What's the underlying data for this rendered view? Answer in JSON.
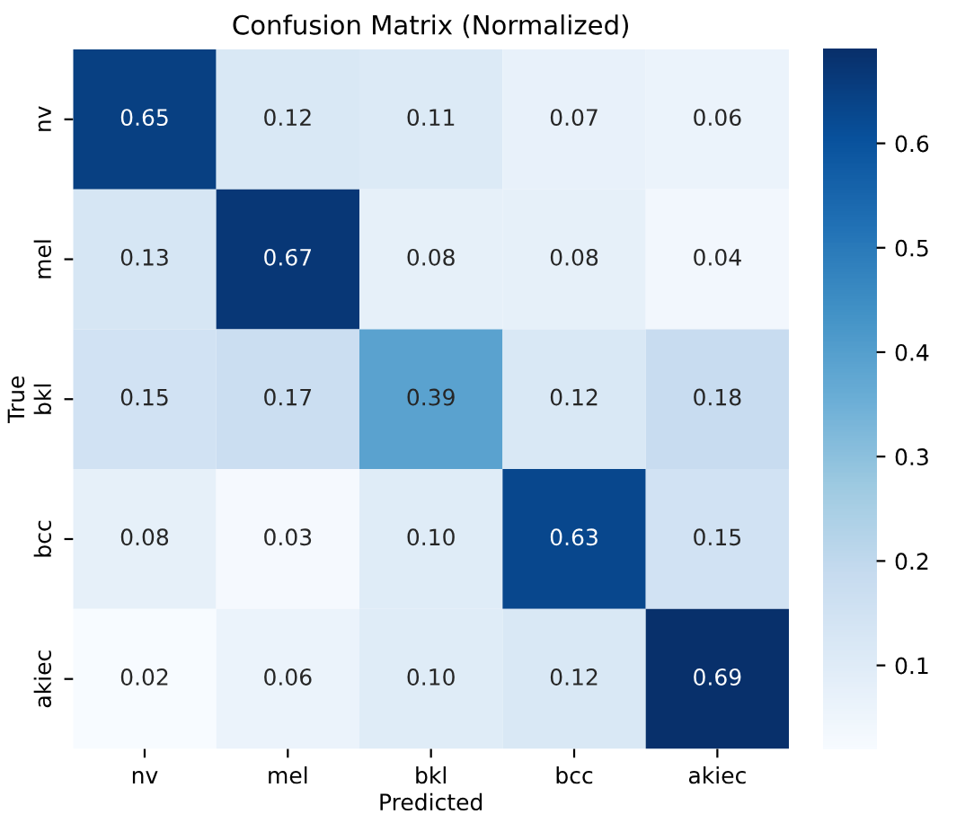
{
  "chart_data": {
    "type": "heatmap",
    "title": "Confusion Matrix (Normalized)",
    "xlabel": "Predicted",
    "ylabel": "True",
    "categories": [
      "nv",
      "mel",
      "bkl",
      "bcc",
      "akiec"
    ],
    "y_categories": [
      "nv",
      "mel",
      "bkl",
      "bcc",
      "akiec"
    ],
    "cells": [
      [
        0.65,
        0.12,
        0.11,
        0.07,
        0.06
      ],
      [
        0.13,
        0.67,
        0.08,
        0.08,
        0.04
      ],
      [
        0.15,
        0.17,
        0.39,
        0.12,
        0.18
      ],
      [
        0.08,
        0.03,
        0.1,
        0.63,
        0.15
      ],
      [
        0.02,
        0.06,
        0.1,
        0.12,
        0.69
      ]
    ],
    "cell_labels": [
      [
        "0.65",
        "0.12",
        "0.11",
        "0.07",
        "0.06"
      ],
      [
        "0.13",
        "0.67",
        "0.08",
        "0.08",
        "0.04"
      ],
      [
        "0.15",
        "0.17",
        "0.39",
        "0.12",
        "0.18"
      ],
      [
        "0.08",
        "0.03",
        "0.10",
        "0.63",
        "0.15"
      ],
      [
        "0.02",
        "0.06",
        "0.10",
        "0.12",
        "0.69"
      ]
    ],
    "clim": [
      0.02,
      0.69
    ],
    "cticks": [
      0.1,
      0.2,
      0.3,
      0.4,
      0.5,
      0.6
    ]
  }
}
